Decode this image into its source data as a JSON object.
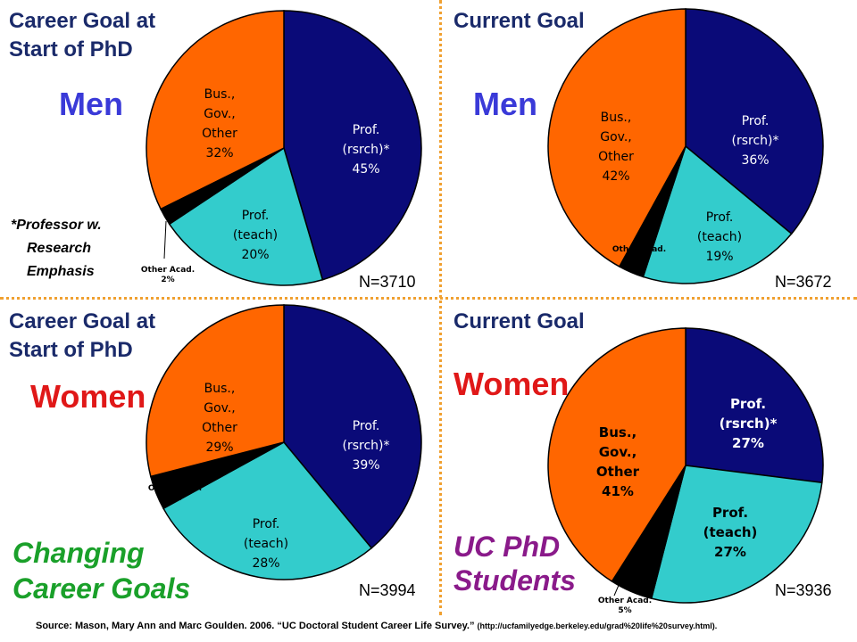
{
  "panels": {
    "top_left": {
      "title": "Career Goal at\nStart of PhD",
      "gender": "Men",
      "n": "N=3710"
    },
    "top_right": {
      "title": "Current Goal",
      "gender": "Men",
      "n": "N=3672"
    },
    "bottom_left": {
      "title": "Career Goal at\nStart of PhD",
      "gender": "Women",
      "n": "N=3994"
    },
    "bottom_right": {
      "title": "Current Goal",
      "gender": "Women",
      "n": "N=3936"
    }
  },
  "footnote": {
    "line1": "*Professor w.",
    "line2": "Research",
    "line3": "Emphasis"
  },
  "changing_goals": "Changing\nCareer Goals",
  "uc_phd": "UC PhD\nStudents",
  "source": {
    "text": "Source: Mason, Mary Ann  and Marc Goulden.  2006. “UC Doctoral Student Career Life Survey.”",
    "url": "(http://ucfamilyedge.berkeley.edu/grad%20life%20survey.html)."
  },
  "colors": {
    "prof_rsrch": "#0a0a78",
    "prof_teach": "#33cccc",
    "other_acad": "#000000",
    "bus_gov_other": "#ff6600"
  },
  "chart_data": [
    {
      "type": "pie",
      "title": "Career Goal at Start of PhD — Men",
      "slices": [
        {
          "label": "Prof. (rsrch)*",
          "value": 45,
          "display": "45%"
        },
        {
          "label": "Prof. (teach)",
          "value": 20,
          "display": "20%"
        },
        {
          "label": "Other Acad.",
          "value": 2,
          "display": "2%"
        },
        {
          "label": "Bus., Gov., Other",
          "value": 32,
          "display": "32%"
        }
      ]
    },
    {
      "type": "pie",
      "title": "Current Goal — Men",
      "slices": [
        {
          "label": "Prof. (rsrch)*",
          "value": 36,
          "display": "36%"
        },
        {
          "label": "Prof. (teach)",
          "value": 19,
          "display": "19%"
        },
        {
          "label": "Other Acad.",
          "value": 3,
          "display": "3%"
        },
        {
          "label": "Bus., Gov., Other",
          "value": 42,
          "display": "42%"
        }
      ]
    },
    {
      "type": "pie",
      "title": "Career Goal at Start of PhD — Women",
      "slices": [
        {
          "label": "Prof. (rsrch)*",
          "value": 39,
          "display": "39%"
        },
        {
          "label": "Prof. (teach)",
          "value": 28,
          "display": "28%"
        },
        {
          "label": "Other Acad.",
          "value": 4,
          "display": "4%"
        },
        {
          "label": "Bus., Gov., Other",
          "value": 29,
          "display": "29%"
        }
      ]
    },
    {
      "type": "pie",
      "title": "Current Goal — Women",
      "slices": [
        {
          "label": "Prof. (rsrch)*",
          "value": 27,
          "display": "27%"
        },
        {
          "label": "Prof. (teach)",
          "value": 27,
          "display": "27%"
        },
        {
          "label": "Other Acad.",
          "value": 5,
          "display": "5%"
        },
        {
          "label": "Bus., Gov., Other",
          "value": 41,
          "display": "41%"
        }
      ]
    }
  ]
}
